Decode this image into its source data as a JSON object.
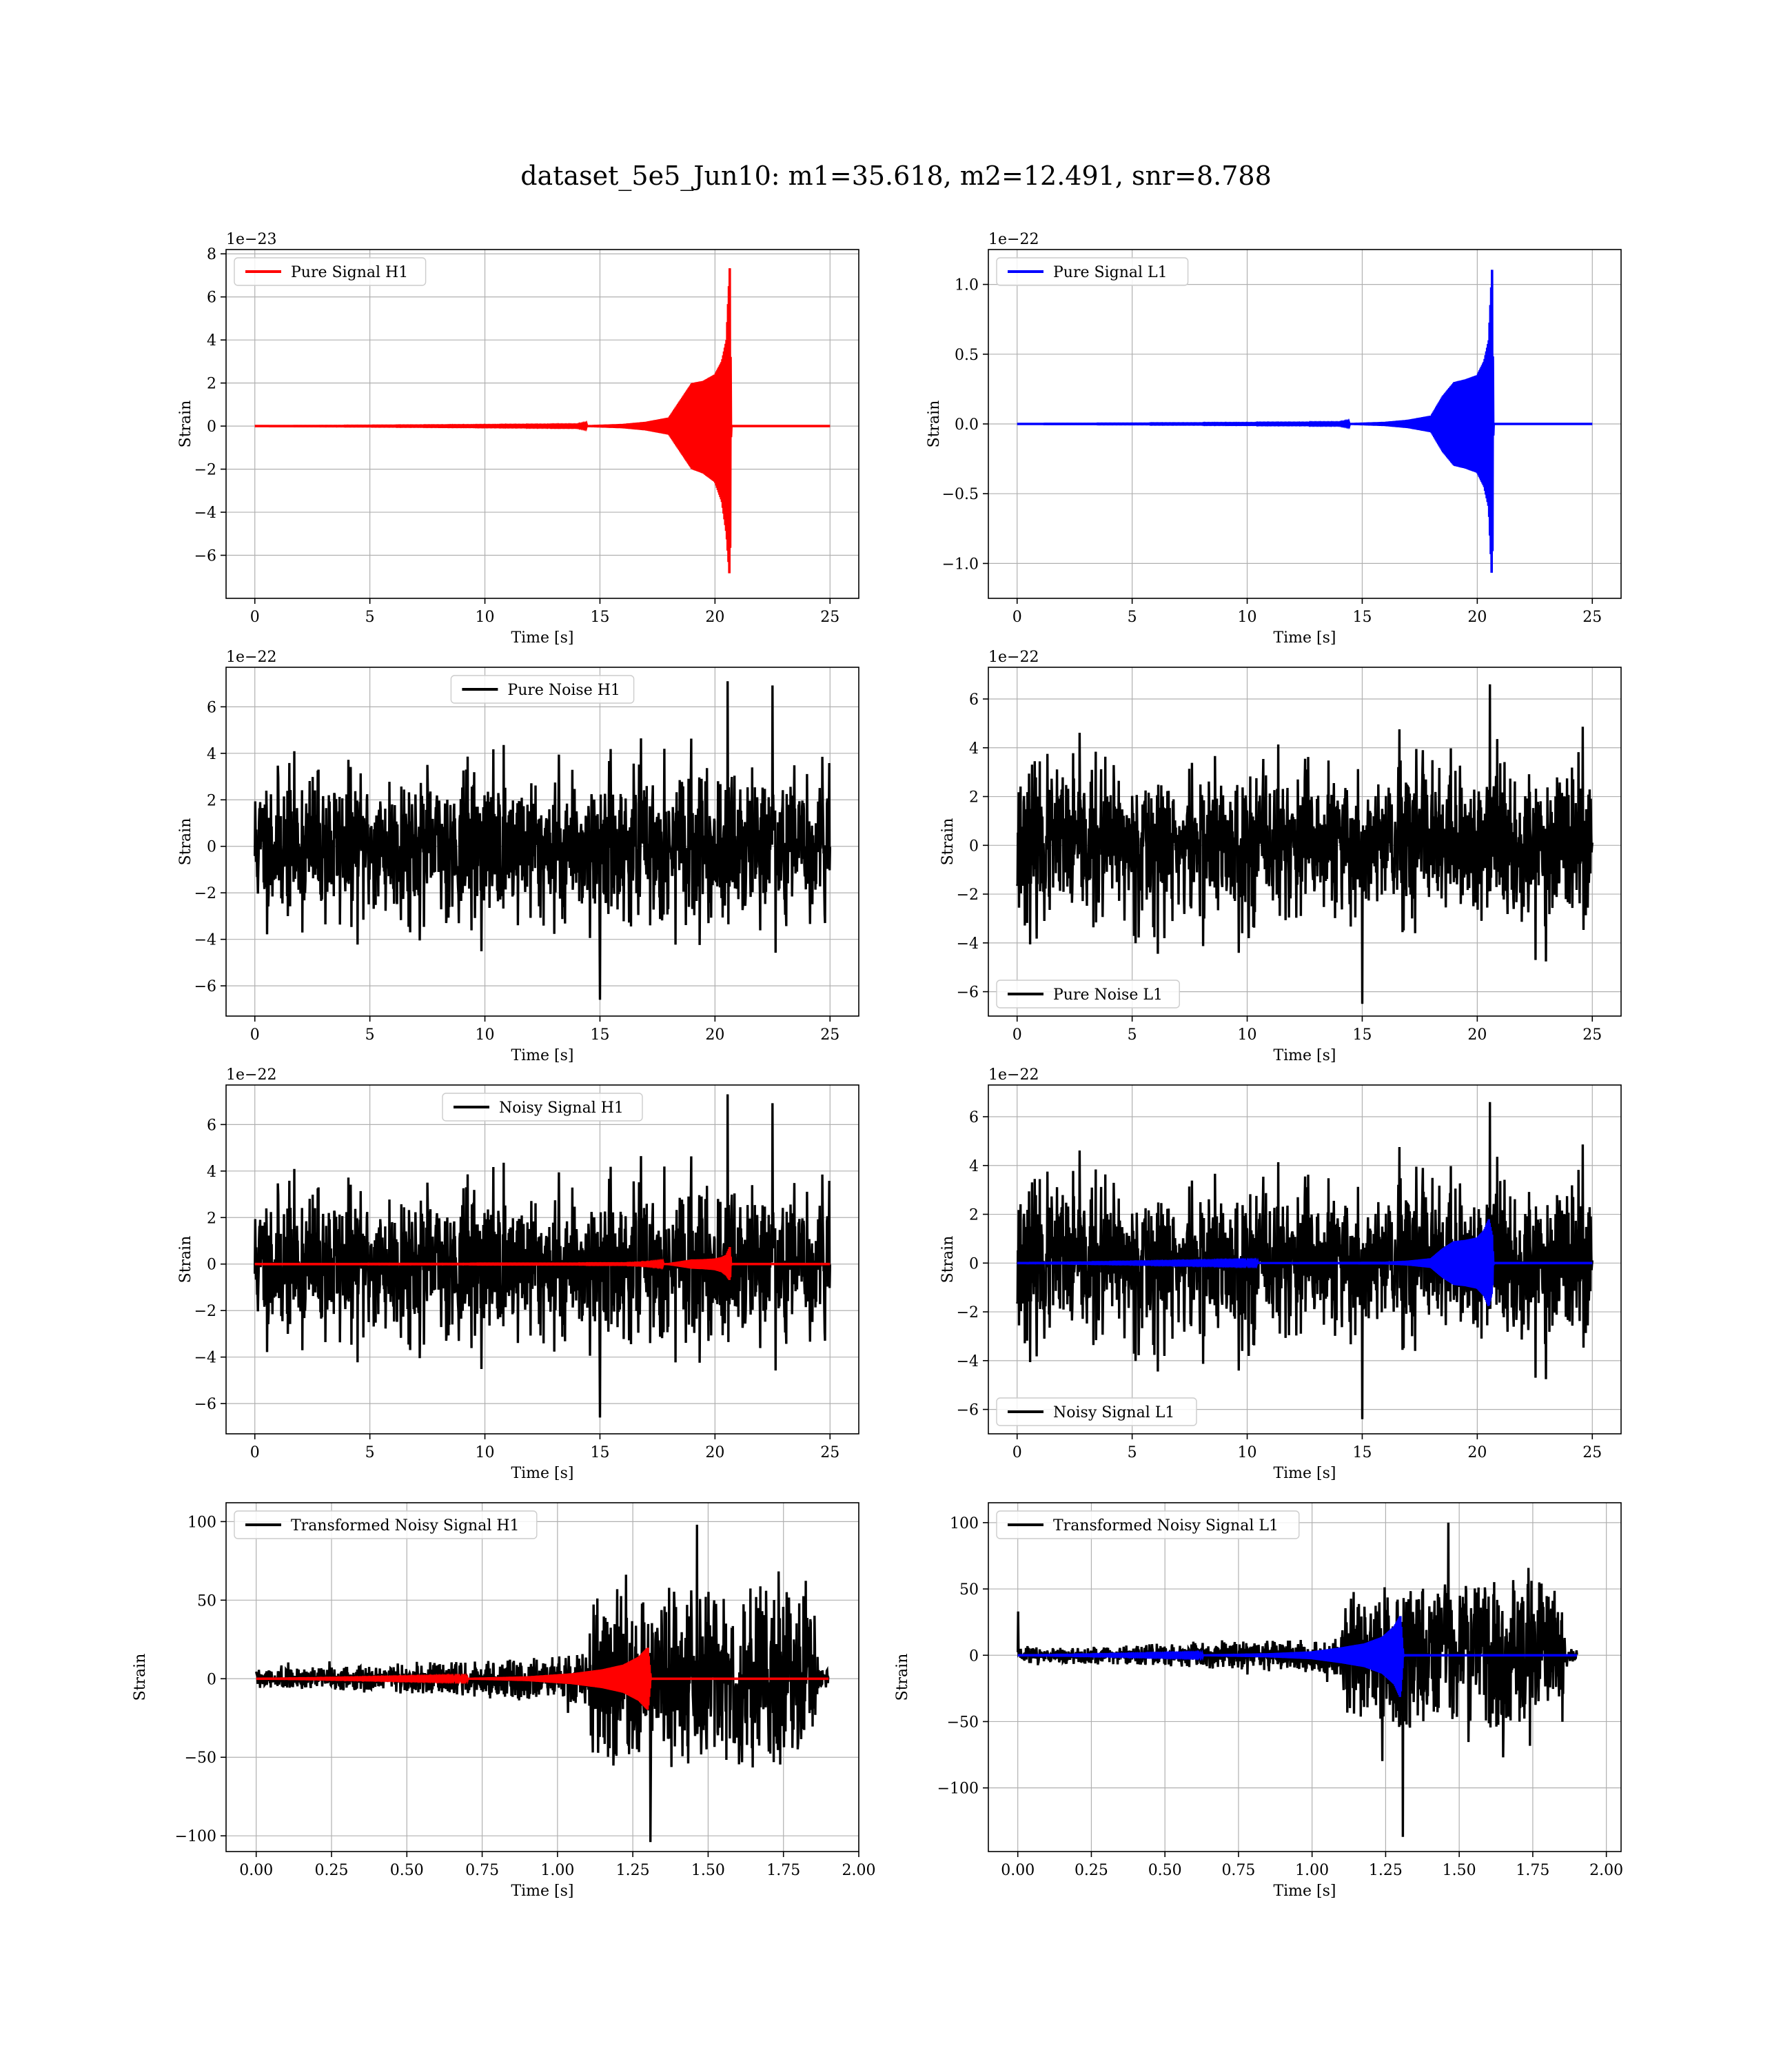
{
  "title": "dataset_5e5_Jun10: m1=35.618, m2=12.491, snr=8.788",
  "chart_data": [
    {
      "type": "line",
      "row": 0,
      "col": 0,
      "xlabel": "Time [s]",
      "ylabel": "Strain",
      "scale_label": "1e−23",
      "xlim": [
        -1.25,
        26.25
      ],
      "ylim": [
        -8.0,
        8.2
      ],
      "xticks": [
        0,
        5,
        10,
        15,
        20,
        25
      ],
      "yticks": [
        -6,
        -4,
        -2,
        0,
        2,
        4,
        6,
        8
      ],
      "ytick_labels": [
        "−6",
        "−4",
        "−2",
        "0",
        "2",
        "4",
        "6",
        "8"
      ],
      "legend": {
        "position": "upper-left"
      },
      "series": [
        {
          "name": "Pure Signal H1",
          "color": "#ff0000",
          "kind": "chirp",
          "x": [
            0,
            14,
            16,
            17,
            18,
            18.5,
            19,
            19.5,
            20,
            20.3,
            20.5,
            20.65,
            20.7,
            25
          ],
          "upper": [
            0,
            0.02,
            0.1,
            0.2,
            0.4,
            1.2,
            2.0,
            2.1,
            2.4,
            3.0,
            4.0,
            7.5,
            0,
            0
          ],
          "lower": [
            0,
            -0.02,
            -0.1,
            -0.2,
            -0.4,
            -1.2,
            -2.0,
            -2.2,
            -2.6,
            -3.5,
            -5.0,
            -7.2,
            0,
            0
          ]
        }
      ]
    },
    {
      "type": "line",
      "row": 0,
      "col": 1,
      "xlabel": "Time [s]",
      "ylabel": "Strain",
      "scale_label": "1e−22",
      "xlim": [
        -1.25,
        26.25
      ],
      "ylim": [
        -1.25,
        1.25
      ],
      "xticks": [
        0,
        5,
        10,
        15,
        20,
        25
      ],
      "yticks": [
        -1.0,
        -0.5,
        0.0,
        0.5,
        1.0
      ],
      "ytick_labels": [
        "−1.0",
        "−0.5",
        "0.0",
        "0.5",
        "1.0"
      ],
      "legend": {
        "position": "upper-left"
      },
      "series": [
        {
          "name": "Pure Signal L1",
          "color": "#0000ff",
          "kind": "chirp",
          "x": [
            0,
            14,
            16,
            17,
            18,
            18.5,
            19,
            19.5,
            20,
            20.3,
            20.5,
            20.65,
            20.7,
            25
          ],
          "upper": [
            0,
            0.003,
            0.015,
            0.03,
            0.06,
            0.2,
            0.3,
            0.32,
            0.35,
            0.45,
            0.6,
            1.13,
            0,
            0
          ],
          "lower": [
            0,
            -0.003,
            -0.015,
            -0.03,
            -0.06,
            -0.2,
            -0.3,
            -0.32,
            -0.35,
            -0.45,
            -0.6,
            -1.16,
            0,
            0
          ]
        }
      ]
    },
    {
      "type": "line",
      "row": 1,
      "col": 0,
      "xlabel": "Time [s]",
      "ylabel": "Strain",
      "scale_label": "1e−22",
      "xlim": [
        -1.25,
        26.25
      ],
      "ylim": [
        -7.3,
        7.7
      ],
      "xticks": [
        0,
        5,
        10,
        15,
        20,
        25
      ],
      "yticks": [
        -6,
        -4,
        -2,
        0,
        2,
        4,
        6
      ],
      "ytick_labels": [
        "−6",
        "−4",
        "−2",
        "0",
        "2",
        "4",
        "6"
      ],
      "legend": {
        "position": "upper-center"
      },
      "series": [
        {
          "name": "Pure Noise H1",
          "color": "#000000",
          "kind": "noise",
          "x_range": [
            0,
            25
          ],
          "sigma": 1.5,
          "max": 7.1,
          "min": -6.6,
          "seed": 11
        }
      ]
    },
    {
      "type": "line",
      "row": 1,
      "col": 1,
      "xlabel": "Time [s]",
      "ylabel": "Strain",
      "scale_label": "1e−22",
      "xlim": [
        -1.25,
        26.25
      ],
      "ylim": [
        -7.0,
        7.3
      ],
      "xticks": [
        0,
        5,
        10,
        15,
        20,
        25
      ],
      "yticks": [
        -6,
        -4,
        -2,
        0,
        2,
        4,
        6
      ],
      "ytick_labels": [
        "−6",
        "−4",
        "−2",
        "0",
        "2",
        "4",
        "6"
      ],
      "legend": {
        "position": "lower-left"
      },
      "series": [
        {
          "name": "Pure Noise L1",
          "color": "#000000",
          "kind": "noise",
          "x_range": [
            0,
            25
          ],
          "sigma": 1.5,
          "max": 6.6,
          "min": -6.5,
          "seed": 23
        }
      ]
    },
    {
      "type": "line",
      "row": 2,
      "col": 0,
      "xlabel": "Time [s]",
      "ylabel": "Strain",
      "scale_label": "1e−22",
      "xlim": [
        -1.25,
        26.25
      ],
      "ylim": [
        -7.3,
        7.7
      ],
      "xticks": [
        0,
        5,
        10,
        15,
        20,
        25
      ],
      "yticks": [
        -6,
        -4,
        -2,
        0,
        2,
        4,
        6
      ],
      "ytick_labels": [
        "−6",
        "−4",
        "−2",
        "0",
        "2",
        "4",
        "6"
      ],
      "legend": {
        "position": "upper-center"
      },
      "series": [
        {
          "name": "Noisy Signal H1",
          "color": "#000000",
          "kind": "noise",
          "x_range": [
            0,
            25
          ],
          "sigma": 1.5,
          "max": 7.3,
          "min": -6.6,
          "seed": 11
        },
        {
          "name": "",
          "color": "#ff0000",
          "kind": "chirp",
          "x": [
            0,
            16,
            17,
            18,
            18.5,
            19,
            19.5,
            20,
            20.3,
            20.5,
            20.65,
            20.7,
            25
          ],
          "upper": [
            0,
            0.01,
            0.02,
            0.04,
            0.12,
            0.2,
            0.21,
            0.24,
            0.3,
            0.4,
            0.75,
            0,
            0
          ],
          "lower": [
            0,
            -0.01,
            -0.02,
            -0.04,
            -0.12,
            -0.2,
            -0.22,
            -0.26,
            -0.35,
            -0.5,
            -0.72,
            0,
            0
          ]
        }
      ]
    },
    {
      "type": "line",
      "row": 2,
      "col": 1,
      "xlabel": "Time [s]",
      "ylabel": "Strain",
      "scale_label": "1e−22",
      "xlim": [
        -1.25,
        26.25
      ],
      "ylim": [
        -7.0,
        7.3
      ],
      "xticks": [
        0,
        5,
        10,
        15,
        20,
        25
      ],
      "yticks": [
        -6,
        -4,
        -2,
        0,
        2,
        4,
        6
      ],
      "ytick_labels": [
        "−6",
        "−4",
        "−2",
        "0",
        "2",
        "4",
        "6"
      ],
      "legend": {
        "position": "lower-left"
      },
      "series": [
        {
          "name": "Noisy Signal L1",
          "color": "#000000",
          "kind": "noise",
          "x_range": [
            0,
            25
          ],
          "sigma": 1.5,
          "max": 6.6,
          "min": -6.4,
          "seed": 23
        },
        {
          "name": "",
          "color": "#0000ff",
          "kind": "chirp",
          "x": [
            0,
            16,
            17,
            18,
            18.5,
            19,
            19.5,
            20,
            20.3,
            20.5,
            20.65,
            20.7,
            25
          ],
          "upper": [
            0,
            0.05,
            0.1,
            0.2,
            0.6,
            0.9,
            0.95,
            1.05,
            1.35,
            1.8,
            1.13,
            0,
            0
          ],
          "lower": [
            0,
            -0.05,
            -0.1,
            -0.2,
            -0.6,
            -0.9,
            -0.95,
            -1.05,
            -1.35,
            -1.8,
            -1.16,
            0,
            0
          ]
        }
      ]
    },
    {
      "type": "line",
      "row": 3,
      "col": 0,
      "xlabel": "Time [s]",
      "ylabel": "Strain",
      "scale_label": "",
      "xlim": [
        -0.1,
        2.0
      ],
      "ylim": [
        -110,
        112
      ],
      "xticks": [
        0.0,
        0.25,
        0.5,
        0.75,
        1.0,
        1.25,
        1.5,
        1.75,
        2.0
      ],
      "xtick_labels": [
        "0.00",
        "0.25",
        "0.50",
        "0.75",
        "1.00",
        "1.25",
        "1.50",
        "1.75",
        "2.00"
      ],
      "yticks": [
        -100,
        -50,
        0,
        50,
        100
      ],
      "ytick_labels": [
        "−100",
        "−50",
        "0",
        "50",
        "100"
      ],
      "legend": {
        "position": "upper-left"
      },
      "series": [
        {
          "name": "Transformed Noisy Signal H1",
          "color": "#000000",
          "kind": "envnoise",
          "x_range": [
            0,
            1.9
          ],
          "seed": 31,
          "env_x": [
            0,
            0.3,
            0.5,
            0.8,
            1.0,
            1.1,
            1.12,
            1.3,
            1.5,
            1.7,
            1.85,
            1.87,
            1.9
          ],
          "env_y": [
            6,
            8,
            10,
            12,
            14,
            18,
            55,
            60,
            58,
            60,
            55,
            6,
            6
          ],
          "max": 98,
          "min": -104
        },
        {
          "name": "",
          "color": "#ff0000",
          "kind": "chirp",
          "x": [
            0,
            0.7,
            0.9,
            1.05,
            1.15,
            1.22,
            1.27,
            1.3,
            1.31,
            1.9
          ],
          "upper": [
            0,
            0.5,
            1.5,
            3.5,
            6,
            9,
            14,
            20,
            0,
            0
          ],
          "lower": [
            0,
            -0.5,
            -1.5,
            -3.5,
            -6,
            -9,
            -14,
            -20,
            0,
            0
          ]
        }
      ]
    },
    {
      "type": "line",
      "row": 3,
      "col": 1,
      "xlabel": "Time [s]",
      "ylabel": "Strain",
      "scale_label": "",
      "xlim": [
        -0.1,
        2.05
      ],
      "ylim": [
        -148,
        115
      ],
      "xticks": [
        0.0,
        0.25,
        0.5,
        0.75,
        1.0,
        1.25,
        1.5,
        1.75,
        2.0
      ],
      "xtick_labels": [
        "0.00",
        "0.25",
        "0.50",
        "0.75",
        "1.00",
        "1.25",
        "1.50",
        "1.75",
        "2.00"
      ],
      "yticks": [
        -100,
        -50,
        0,
        50,
        100
      ],
      "ytick_labels": [
        "−100",
        "−50",
        "0",
        "50",
        "100"
      ],
      "legend": {
        "position": "upper-left"
      },
      "series": [
        {
          "name": "Transformed Noisy Signal L1",
          "color": "#000000",
          "kind": "envnoise",
          "x_range": [
            0,
            1.9
          ],
          "seed": 43,
          "env_x": [
            0,
            0.3,
            0.5,
            0.8,
            1.0,
            1.1,
            1.12,
            1.3,
            1.5,
            1.7,
            1.85,
            1.87,
            1.9
          ],
          "env_y": [
            6,
            7,
            9,
            11,
            13,
            17,
            50,
            55,
            55,
            58,
            52,
            5,
            5
          ],
          "max": 100,
          "min": -137,
          "spike_start": 33
        },
        {
          "name": "",
          "color": "#0000ff",
          "kind": "chirp",
          "x": [
            0,
            0.6,
            0.85,
            1.0,
            1.1,
            1.18,
            1.24,
            1.28,
            1.3,
            1.31,
            1.9
          ],
          "upper": [
            0,
            0.5,
            1.5,
            3,
            6,
            9,
            14,
            22,
            30,
            0,
            0
          ],
          "lower": [
            0,
            -0.5,
            -1.5,
            -3,
            -6,
            -9,
            -14,
            -22,
            -32,
            0,
            0
          ]
        }
      ]
    }
  ]
}
